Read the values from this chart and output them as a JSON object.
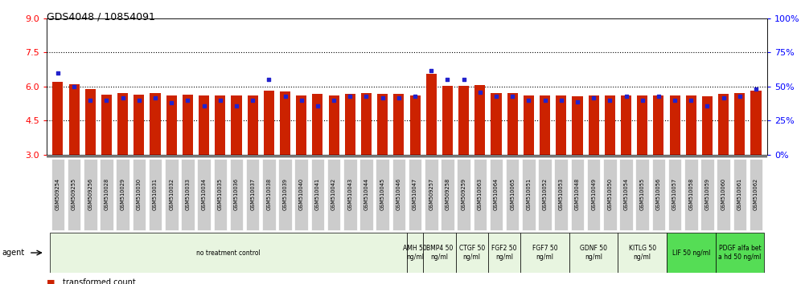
{
  "title": "GDS4048 / 10854091",
  "ylim_left": [
    3,
    9
  ],
  "ylim_right": [
    0,
    100
  ],
  "yticks_left": [
    3,
    4.5,
    6,
    7.5,
    9
  ],
  "yticks_right": [
    0,
    25,
    50,
    75,
    100
  ],
  "samples": [
    "GSM509254",
    "GSM509255",
    "GSM509256",
    "GSM510028",
    "GSM510029",
    "GSM510030",
    "GSM510031",
    "GSM510032",
    "GSM510033",
    "GSM510034",
    "GSM510035",
    "GSM510036",
    "GSM510037",
    "GSM510038",
    "GSM510039",
    "GSM510040",
    "GSM510041",
    "GSM510042",
    "GSM510043",
    "GSM510044",
    "GSM510045",
    "GSM510046",
    "GSM510047",
    "GSM509257",
    "GSM509258",
    "GSM509259",
    "GSM510063",
    "GSM510064",
    "GSM510065",
    "GSM510051",
    "GSM510052",
    "GSM510053",
    "GSM510048",
    "GSM510049",
    "GSM510050",
    "GSM510054",
    "GSM510055",
    "GSM510056",
    "GSM510057",
    "GSM510058",
    "GSM510059",
    "GSM510060",
    "GSM510061",
    "GSM510062"
  ],
  "red_values": [
    6.2,
    6.1,
    5.9,
    5.65,
    5.7,
    5.65,
    5.7,
    5.6,
    5.65,
    5.6,
    5.62,
    5.62,
    5.62,
    5.82,
    5.77,
    5.62,
    5.67,
    5.62,
    5.67,
    5.72,
    5.67,
    5.67,
    5.62,
    6.55,
    6.02,
    6.02,
    6.07,
    5.72,
    5.72,
    5.62,
    5.62,
    5.62,
    5.57,
    5.62,
    5.62,
    5.62,
    5.62,
    5.62,
    5.62,
    5.62,
    5.57,
    5.67,
    5.72,
    5.82
  ],
  "blue_values": [
    60,
    50,
    40,
    40,
    42,
    40,
    42,
    38,
    40,
    36,
    40,
    36,
    40,
    55,
    43,
    40,
    36,
    40,
    43,
    43,
    42,
    42,
    43,
    62,
    55,
    55,
    46,
    43,
    43,
    40,
    40,
    40,
    39,
    42,
    40,
    43,
    40,
    43,
    40,
    40,
    36,
    42,
    43,
    48
  ],
  "agent_groups": [
    {
      "label": "no treatment control",
      "start": 0,
      "end": 22,
      "color": "#e8f5e0",
      "bright": false
    },
    {
      "label": "AMH 50\nng/ml",
      "start": 22,
      "end": 23,
      "color": "#e8f5e0",
      "bright": false
    },
    {
      "label": "BMP4 50\nng/ml",
      "start": 23,
      "end": 25,
      "color": "#e8f5e0",
      "bright": false
    },
    {
      "label": "CTGF 50\nng/ml",
      "start": 25,
      "end": 27,
      "color": "#e8f5e0",
      "bright": false
    },
    {
      "label": "FGF2 50\nng/ml",
      "start": 27,
      "end": 29,
      "color": "#e8f5e0",
      "bright": false
    },
    {
      "label": "FGF7 50\nng/ml",
      "start": 29,
      "end": 32,
      "color": "#e8f5e0",
      "bright": false
    },
    {
      "label": "GDNF 50\nng/ml",
      "start": 32,
      "end": 35,
      "color": "#e8f5e0",
      "bright": false
    },
    {
      "label": "KITLG 50\nng/ml",
      "start": 35,
      "end": 38,
      "color": "#e8f5e0",
      "bright": false
    },
    {
      "label": "LIF 50 ng/ml",
      "start": 38,
      "end": 41,
      "color": "#55dd55",
      "bright": true
    },
    {
      "label": "PDGF alfa bet\na hd 50 ng/ml",
      "start": 41,
      "end": 44,
      "color": "#55dd55",
      "bright": true
    }
  ],
  "bar_color": "#cc2200",
  "dot_color": "#2222cc",
  "tick_label_bg": "#cccccc",
  "background_color": "#ffffff"
}
